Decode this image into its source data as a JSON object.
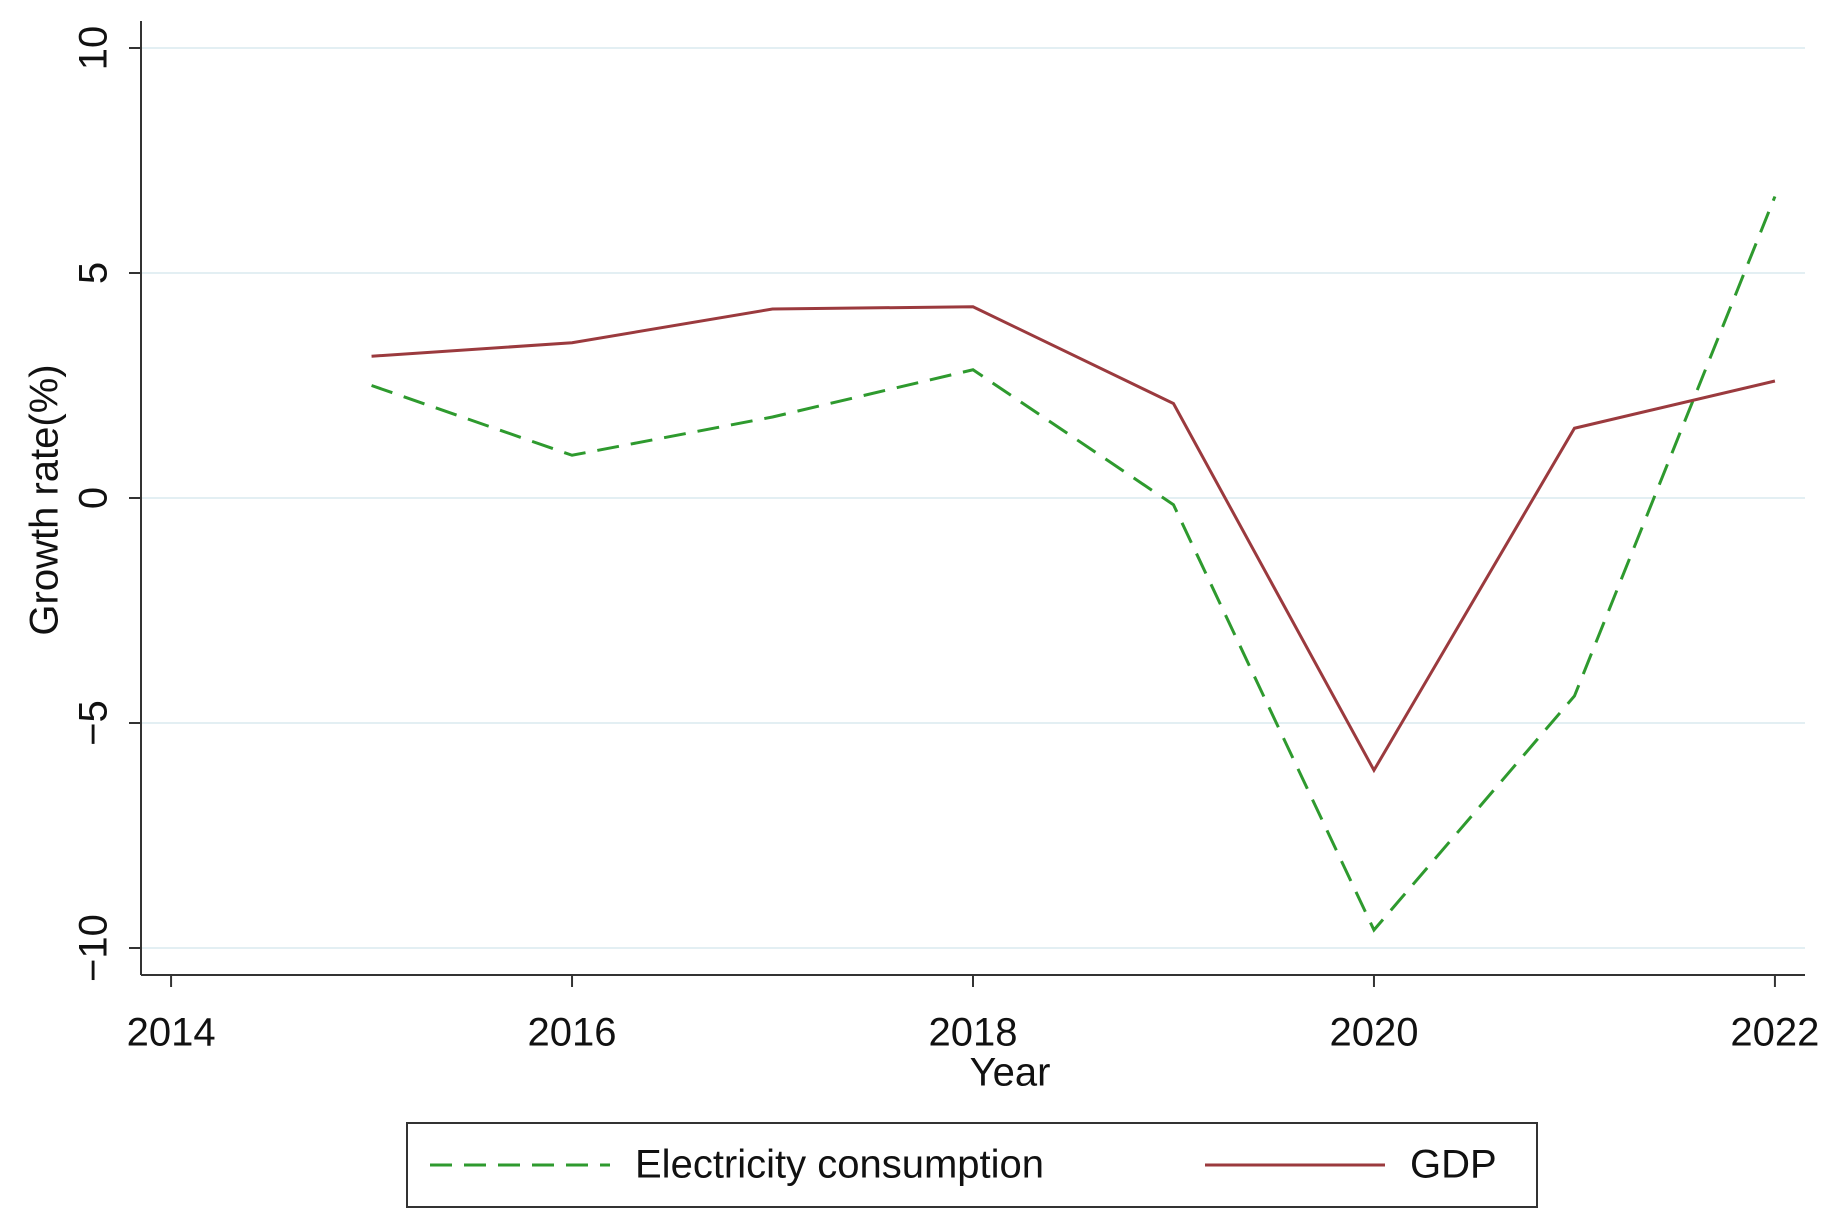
{
  "chart_data": {
    "type": "line",
    "x_label": "Year",
    "y_label": "Growth rate(%)",
    "x": [
      2015,
      2016,
      2017,
      2018,
      2019,
      2020,
      2021,
      2022
    ],
    "series": [
      {
        "name": "Electricity consumption",
        "color": "#2e9a2e",
        "dashed": true,
        "values": [
          2.5,
          0.95,
          1.8,
          2.85,
          -0.15,
          -9.6,
          -4.4,
          6.7
        ]
      },
      {
        "name": "GDP",
        "color": "#9b3a3e",
        "dashed": false,
        "values": [
          3.15,
          3.45,
          4.2,
          4.25,
          2.1,
          -6.05,
          1.55,
          2.6
        ]
      }
    ],
    "xlim": [
      2013.85,
      2022.15
    ],
    "xticks": [
      2014,
      2016,
      2018,
      2020,
      2022
    ],
    "ylim": [
      -10.6,
      10.6
    ],
    "yticks": [
      {
        "value": -10,
        "label": "−10"
      },
      {
        "value": -5,
        "label": "−5"
      },
      0,
      5,
      10
    ],
    "grid": true
  }
}
